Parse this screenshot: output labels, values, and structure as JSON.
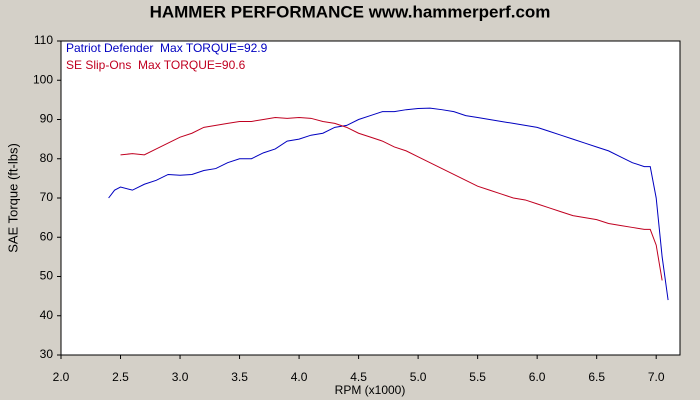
{
  "chart_data": {
    "type": "line",
    "title": "HAMMER PERFORMANCE www.hammerperf.com",
    "x_label": "RPM (x1000)",
    "y_label": "SAE Torque (ft-lbs)",
    "xlim": [
      2.0,
      7.2
    ],
    "ylim": [
      30,
      110
    ],
    "xticks": [
      {
        "value": 2,
        "label": "2.0"
      },
      2.5,
      {
        "value": 3,
        "label": "3.0"
      },
      3.5,
      {
        "value": 4,
        "label": "4.0"
      },
      4.5,
      {
        "value": 5,
        "label": "5.0"
      },
      5.5,
      {
        "value": 6,
        "label": "6.0"
      },
      6.5,
      {
        "value": 7,
        "label": "7.0"
      }
    ],
    "yticks": [
      30,
      40,
      50,
      60,
      70,
      80,
      90,
      100,
      110
    ],
    "legend": "top-left",
    "series": [
      {
        "name": "Patriot Defender  Max TORQUE=92.9",
        "color": "#0000c0",
        "x": [
          2.4,
          2.45,
          2.5,
          2.6,
          2.7,
          2.8,
          2.9,
          3.0,
          3.1,
          3.2,
          3.3,
          3.4,
          3.5,
          3.6,
          3.7,
          3.8,
          3.9,
          4.0,
          4.1,
          4.2,
          4.3,
          4.4,
          4.5,
          4.6,
          4.7,
          4.8,
          4.9,
          5.0,
          5.1,
          5.2,
          5.3,
          5.4,
          5.5,
          5.6,
          5.7,
          5.8,
          5.9,
          6.0,
          6.1,
          6.2,
          6.3,
          6.4,
          6.5,
          6.6,
          6.7,
          6.8,
          6.9,
          6.95,
          7.0,
          7.05,
          7.1
        ],
        "values": [
          70,
          72,
          72.8,
          72,
          73.5,
          74.5,
          76,
          75.8,
          76,
          77,
          77.5,
          79,
          80,
          80,
          81.5,
          82.5,
          84.5,
          85,
          86,
          86.5,
          88,
          88.5,
          90,
          91,
          92,
          92,
          92.5,
          92.8,
          92.9,
          92.5,
          92,
          91,
          90.5,
          90,
          89.5,
          89,
          88.5,
          88,
          87,
          86,
          85,
          84,
          83,
          82,
          80.5,
          79,
          78,
          78,
          70,
          55,
          44
        ]
      },
      {
        "name": "SE Slip-Ons  Max TORQUE=90.6",
        "color": "#c00020",
        "x": [
          2.5,
          2.6,
          2.7,
          2.8,
          2.9,
          3.0,
          3.1,
          3.2,
          3.3,
          3.4,
          3.5,
          3.6,
          3.7,
          3.8,
          3.9,
          4.0,
          4.1,
          4.2,
          4.3,
          4.4,
          4.5,
          4.6,
          4.7,
          4.8,
          4.9,
          5.0,
          5.1,
          5.2,
          5.3,
          5.4,
          5.5,
          5.6,
          5.7,
          5.8,
          5.9,
          6.0,
          6.1,
          6.2,
          6.3,
          6.4,
          6.5,
          6.6,
          6.7,
          6.8,
          6.9,
          6.95,
          7.0,
          7.05
        ],
        "values": [
          81,
          81.3,
          81,
          82.5,
          84,
          85.5,
          86.5,
          88,
          88.5,
          89,
          89.5,
          89.5,
          90,
          90.5,
          90.3,
          90.5,
          90.3,
          89.5,
          89,
          88,
          86.5,
          85.5,
          84.5,
          83,
          82,
          80.5,
          79,
          77.5,
          76,
          74.5,
          73,
          72,
          71,
          70,
          69.5,
          68.5,
          67.5,
          66.5,
          65.5,
          65,
          64.5,
          63.5,
          63,
          62.5,
          62,
          62,
          58,
          49
        ]
      }
    ]
  }
}
